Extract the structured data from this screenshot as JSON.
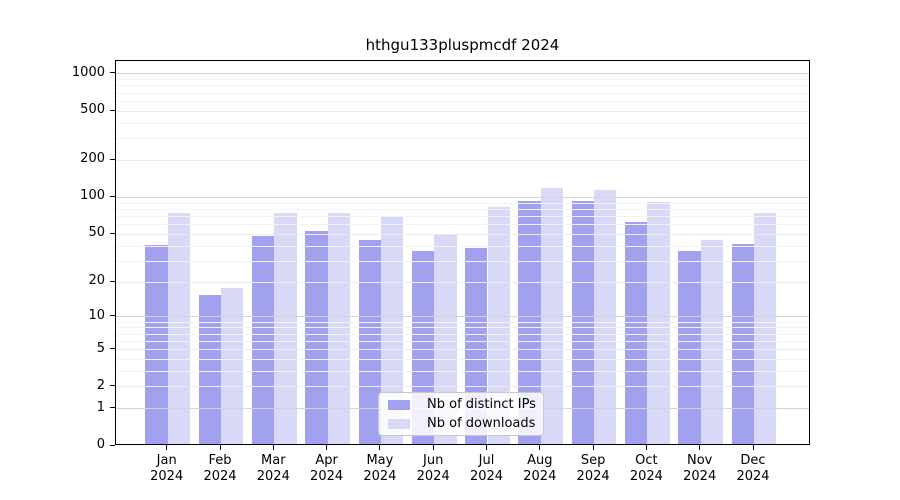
{
  "chart_data": {
    "type": "bar",
    "title": "hthgu133pluspmcdf 2024",
    "categories": [
      "Jan 2024",
      "Feb 2024",
      "Mar 2024",
      "Apr 2024",
      "May 2024",
      "Jun 2024",
      "Jul 2024",
      "Aug 2024",
      "Sep 2024",
      "Oct 2024",
      "Nov 2024",
      "Dec 2024"
    ],
    "series": [
      {
        "name": "Nb of distinct IPs",
        "color": "#a1a1ef",
        "values": [
          39,
          15,
          47,
          51,
          43,
          35,
          37,
          90,
          90,
          61,
          35,
          40
        ]
      },
      {
        "name": "Nb of downloads",
        "color": "#d8d8f7",
        "values": [
          72,
          17,
          72,
          72,
          67,
          48,
          80,
          116,
          110,
          88,
          43,
          72
        ]
      }
    ],
    "y_scale": "log1p",
    "y_ticks": [
      0,
      1,
      2,
      5,
      10,
      20,
      50,
      100,
      200,
      500,
      1000
    ],
    "ylim": [
      0,
      1270
    ],
    "grid": true,
    "legend_position": "lower center inside",
    "colors": {
      "axis": "#000000",
      "grid_major": "#d4d4d4",
      "grid_mid": "#ebebeb",
      "grid_minor": "#f3f3f3"
    }
  }
}
